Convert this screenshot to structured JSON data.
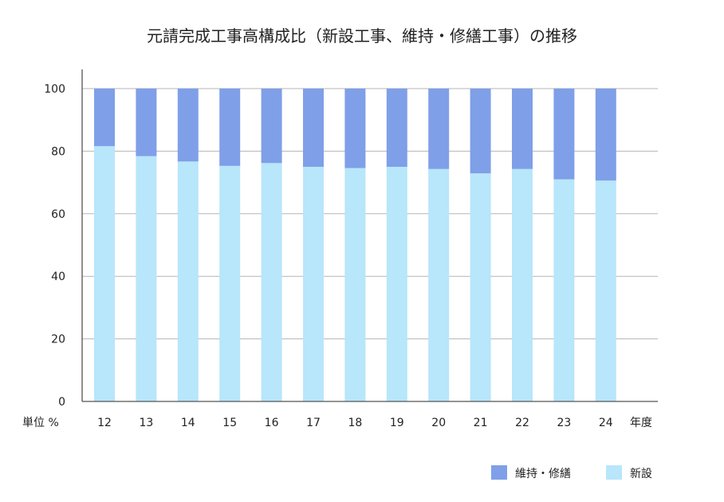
{
  "chart_data": {
    "type": "bar",
    "stacked": true,
    "title": "元請完成工事高構成比（新設工事、維持・修繕工事）の推移",
    "xlabel": "年度",
    "ylabel": "単位 %",
    "categories": [
      "12",
      "13",
      "14",
      "15",
      "16",
      "17",
      "18",
      "19",
      "20",
      "21",
      "22",
      "23",
      "24"
    ],
    "series": [
      {
        "name": "新設",
        "color": "#b8e6fb",
        "values": [
          81.6,
          78.4,
          76.7,
          75.3,
          76.2,
          75.0,
          74.6,
          75.0,
          74.3,
          72.9,
          74.3,
          71.0,
          70.6
        ]
      },
      {
        "name": "維持・修繕",
        "color": "#7f9fe8",
        "values": [
          18.4,
          21.6,
          23.3,
          24.7,
          23.8,
          25.0,
          25.4,
          25.0,
          25.7,
          27.1,
          25.7,
          29.0,
          29.4
        ]
      }
    ],
    "ylim": [
      0,
      100
    ],
    "yticks": [
      0,
      20,
      40,
      60,
      80,
      100
    ],
    "grid": true,
    "legend": [
      {
        "label": "維持・修繕",
        "color": "#7f9fe8"
      },
      {
        "label": "新設",
        "color": "#b8e6fb"
      }
    ],
    "legend_position": "bottom-right"
  }
}
